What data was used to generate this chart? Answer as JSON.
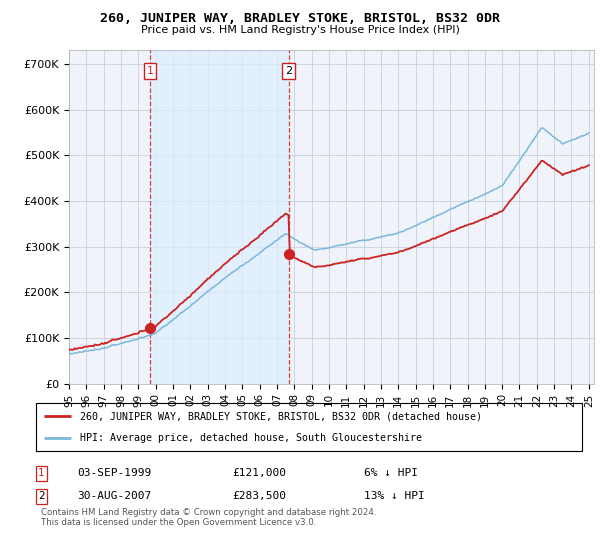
{
  "title": "260, JUNIPER WAY, BRADLEY STOKE, BRISTOL, BS32 0DR",
  "subtitle": "Price paid vs. HM Land Registry's House Price Index (HPI)",
  "ylabel_ticks": [
    "£0",
    "£100K",
    "£200K",
    "£300K",
    "£400K",
    "£500K",
    "£600K",
    "£700K"
  ],
  "ytick_values": [
    0,
    100000,
    200000,
    300000,
    400000,
    500000,
    600000,
    700000
  ],
  "ylim": [
    0,
    730000
  ],
  "x_start_year": 1995,
  "x_end_year": 2025,
  "hpi_color": "#7ab8d9",
  "price_color": "#cc2222",
  "sale1_year": 1999.67,
  "sale1_price": 121000,
  "sale1_date": "03-SEP-1999",
  "sale1_label": "6% ↓ HPI",
  "sale2_year": 2007.67,
  "sale2_price": 283500,
  "sale2_date": "30-AUG-2007",
  "sale2_label": "13% ↓ HPI",
  "legend_line1": "260, JUNIPER WAY, BRADLEY STOKE, BRISTOL, BS32 0DR (detached house)",
  "legend_line2": "HPI: Average price, detached house, South Gloucestershire",
  "footer": "Contains HM Land Registry data © Crown copyright and database right 2024.\nThis data is licensed under the Open Government Licence v3.0.",
  "vline_color": "#cc2222",
  "shade_color": "#ddeeff",
  "background_color": "#f0f4fa"
}
